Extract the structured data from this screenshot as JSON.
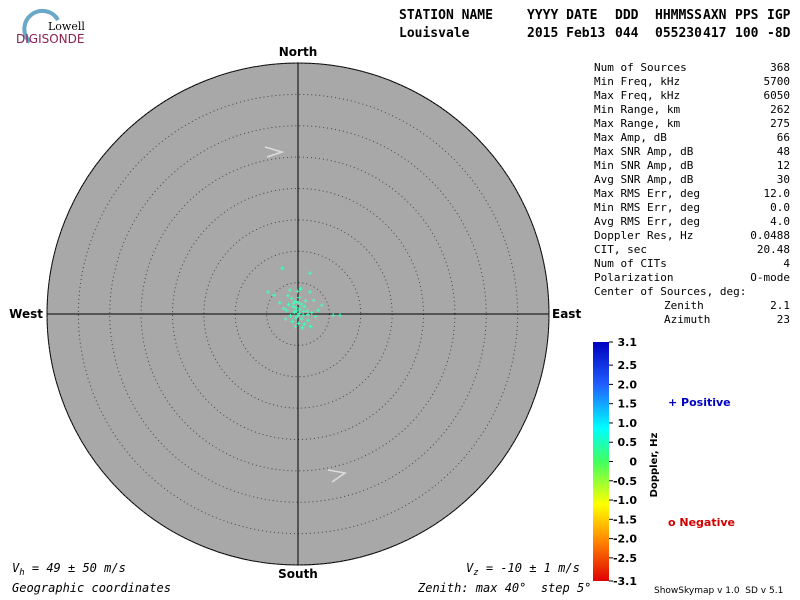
{
  "logo": {
    "top": "Lowell",
    "bottom": "DIGISONDE"
  },
  "header": {
    "labels": [
      "STATION NAME",
      "YYYY DATE",
      "DDD",
      "HHMMSS",
      "AXN",
      "PPS",
      "IGP"
    ],
    "values": [
      "Louisvale",
      "2015 Feb13",
      "044",
      "055230",
      "417",
      "100",
      "-8D"
    ]
  },
  "chart_data": {
    "type": "scatter",
    "directions": {
      "north": "North",
      "south": "South",
      "east": "East",
      "west": "West"
    },
    "xlim": [
      -40,
      40
    ],
    "ylim": [
      -40,
      40
    ],
    "rings": [
      5,
      10,
      15,
      20,
      25,
      30,
      35,
      40
    ],
    "series": [
      {
        "color": "#40ffb8",
        "x": [
          -2.5,
          1.9,
          -4.8,
          -3.8,
          6.7,
          5.6,
          1.9,
          2.5,
          -1.5,
          -1.0,
          -0.5,
          0,
          0.5,
          -0.8,
          -0.3,
          0.3,
          1.0,
          1.5,
          -1.8,
          -2.3,
          -0.6,
          0.2,
          0.8,
          -1.2,
          -0.3,
          0.6,
          1.6,
          2.2,
          -2.0,
          -0.9,
          0.1,
          1.0,
          2.8,
          3.2,
          -1.6,
          0.2,
          -0.1,
          1.2,
          -2.9,
          3.8,
          0.7,
          -0.4,
          2.0,
          -1.3,
          0.4,
          1.6,
          -0.2,
          0.9,
          -0.7,
          0.0
        ],
        "values": [
          7.3,
          6.5,
          3.5,
          3.0,
          -0.2,
          -0.2,
          3.5,
          2.2,
          1.5,
          2.5,
          2.0,
          1.8,
          1.6,
          1.2,
          1.0,
          0.8,
          1.2,
          0.5,
          0.6,
          0.9,
          0.3,
          0.1,
          -0.2,
          -0.3,
          -0.6,
          -0.8,
          -1.0,
          0.2,
          -0.8,
          -1.2,
          -1.5,
          -1.6,
          -0.4,
          0.6,
          2.9,
          2.6,
          3.6,
          2.1,
          1.8,
          1.4,
          -2.2,
          -2.0,
          -2.0,
          3.8,
          4.0,
          -0.1,
          0.5,
          0.4,
          1.7,
          -0.2
        ]
      }
    ],
    "colorbar": {
      "label": "Doppler, Hz",
      "lim": [
        -3.1,
        3.1
      ],
      "ticks": [
        3.1,
        2.5,
        {
          "value": 2,
          "label": "2.0"
        },
        1.5,
        {
          "value": 1,
          "label": "1.0"
        },
        0.5,
        0,
        -0.5,
        {
          "value": -1,
          "label": "-1.0"
        },
        -1.5,
        {
          "value": -2,
          "label": "-2.0"
        },
        -2.5,
        -3.1
      ],
      "positive": "+ Positive",
      "negative": "o Negative"
    }
  },
  "stats": {
    "rows": [
      [
        "Num of Sources",
        "368"
      ],
      [
        "Min Freq, kHz",
        "5700"
      ],
      [
        "Max Freq, kHz",
        "6050"
      ],
      [
        "Min Range, km",
        "262"
      ],
      [
        "Max Range, km",
        "275"
      ],
      [
        "Max Amp, dB",
        "66"
      ],
      [
        "Max SNR Amp, dB",
        "48"
      ],
      [
        "Min SNR Amp, dB",
        "12"
      ],
      [
        "Avg SNR Amp, dB",
        "30"
      ],
      [
        "Max RMS Err, deg",
        "12.0"
      ],
      [
        "Min RMS Err, deg",
        "0.0"
      ],
      [
        "Avg RMS Err, deg",
        "4.0"
      ],
      [
        "Doppler Res, Hz",
        "0.0488"
      ],
      [
        "CIT, sec",
        "20.48"
      ],
      [
        "Num of CITs",
        "4"
      ],
      [
        "Polarization",
        "O-mode"
      ]
    ],
    "center_title": "Center of Sources, deg:",
    "center_rows": [
      [
        "Zenith",
        "2.1"
      ],
      [
        "Azimuth",
        "23"
      ]
    ]
  },
  "footer": {
    "vh": {
      "symbol": "V",
      "sub": "h",
      "text": " = 49 ± 50 m/s"
    },
    "vz": {
      "symbol": "V",
      "sub": "z",
      "text": " = -10 ± 1 m/s"
    },
    "coords": "Geographic coordinates",
    "zenith": "Zenith: max 40°  step 5°",
    "version": "ShowSkymap v 1.0  SD v 5.1"
  }
}
